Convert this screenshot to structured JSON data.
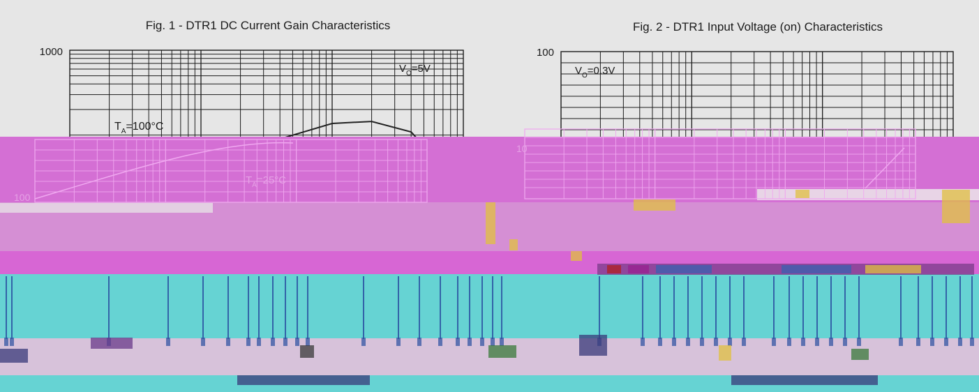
{
  "chart_data": [
    {
      "type": "line",
      "title": "Fig. 1 - DTR1 DC Current Gain Characteristics",
      "xlabel": "",
      "ylabel": "",
      "yscale": "log",
      "xscale": "log",
      "ytick_labels": [
        "1000",
        "100"
      ],
      "ylim": [
        70,
        1000
      ],
      "xlim": [
        0.1,
        100
      ],
      "grid": true,
      "annotations": [
        {
          "id": "vo",
          "prefix": "V",
          "sub": "O",
          "suffix": "=5V"
        },
        {
          "id": "ta100",
          "prefix": "T",
          "sub": "A",
          "suffix": "=100°C"
        },
        {
          "id": "ta25",
          "prefix": "T",
          "sub": "A",
          "suffix": "=25°C"
        }
      ],
      "series": [
        {
          "id": "upper",
          "x": [
            0.1,
            0.3,
            1,
            3,
            10,
            20,
            40,
            60
          ],
          "y": [
            75,
            130,
            240,
            350,
            440,
            450,
            400,
            300
          ]
        },
        {
          "id": "lower",
          "x": [
            0.1,
            0.3,
            1,
            3,
            10,
            20,
            40,
            60
          ],
          "y": [
            72,
            120,
            220,
            300,
            340,
            345,
            330,
            270
          ]
        }
      ]
    },
    {
      "type": "line",
      "title": "Fig. 2 - DTR1 Input Voltage (on) Characteristics",
      "xlabel": "",
      "ylabel": "",
      "yscale": "log",
      "xscale": "log",
      "ytick_labels": [
        "100",
        "10"
      ],
      "ylim": [
        1,
        100
      ],
      "xlim": [
        0.1,
        100
      ],
      "grid": true,
      "annotations": [
        {
          "id": "vo",
          "prefix": "V",
          "sub": "O",
          "suffix": "=0.3V"
        }
      ],
      "series": []
    }
  ],
  "colors": {
    "background": "#e6e6e6",
    "grid": "#1a1a1a",
    "curve": "#222222",
    "magenta_band": "#d46fd4",
    "cyan_band": "#66d3d3",
    "mauve_band": "#d7c2da"
  }
}
